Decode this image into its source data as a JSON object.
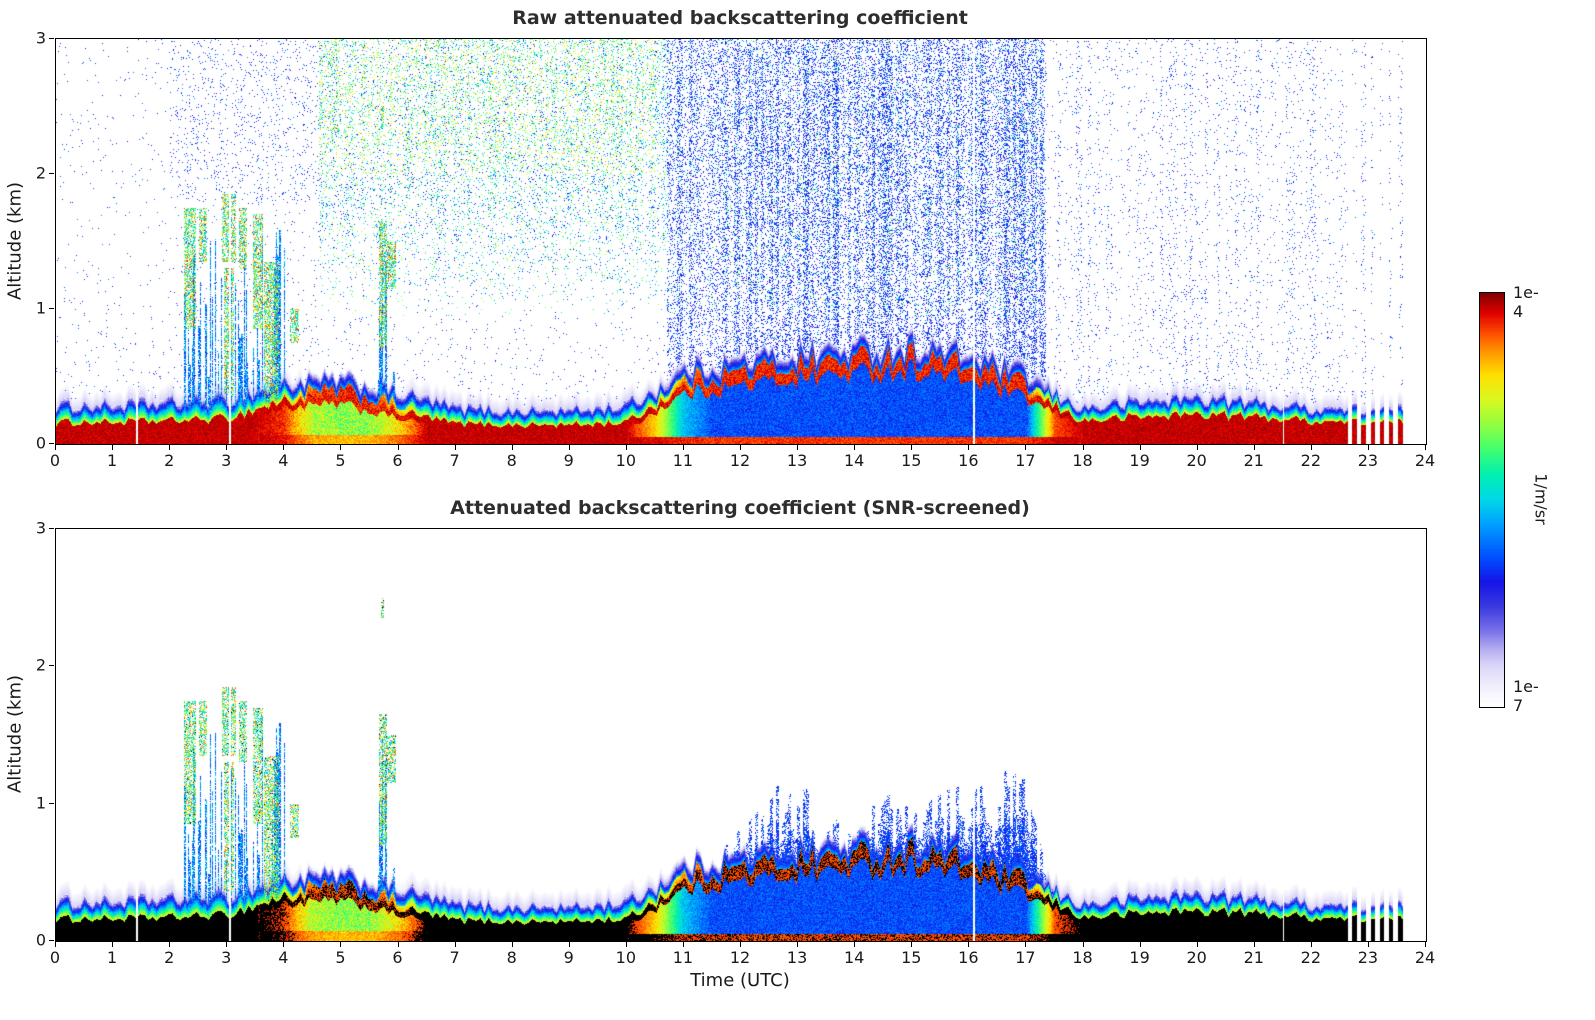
{
  "figure": {
    "background": "#ffffff",
    "colorbar": {
      "top_label": "1e-4",
      "bottom_label": "1e-7",
      "unit_label": "1/m/sr",
      "stops": [
        [
          0.0,
          "#ffffff"
        ],
        [
          0.05,
          "#f0eefc"
        ],
        [
          0.1,
          "#d8d4f8"
        ],
        [
          0.14,
          "#b0aaf0"
        ],
        [
          0.18,
          "#7a72e8"
        ],
        [
          0.24,
          "#3a3ae0"
        ],
        [
          0.3,
          "#1515e8"
        ],
        [
          0.36,
          "#0050ff"
        ],
        [
          0.44,
          "#00a0ff"
        ],
        [
          0.5,
          "#00d8e8"
        ],
        [
          0.56,
          "#00f0b0"
        ],
        [
          0.62,
          "#40ff70"
        ],
        [
          0.68,
          "#90ff40"
        ],
        [
          0.74,
          "#d8f820"
        ],
        [
          0.8,
          "#ffe000"
        ],
        [
          0.85,
          "#ffa000"
        ],
        [
          0.9,
          "#ff5000"
        ],
        [
          0.95,
          "#e00000"
        ],
        [
          1.0,
          "#7f0000"
        ]
      ]
    }
  },
  "chart_data": [
    {
      "type": "heatmap",
      "title": "Raw attenuated backscattering coefficient",
      "xlabel": "",
      "ylabel": "Altitude (km)",
      "xlim": [
        0,
        24
      ],
      "ylim": [
        0,
        3
      ],
      "xticks": [
        0,
        1,
        2,
        3,
        4,
        5,
        6,
        7,
        8,
        9,
        10,
        11,
        12,
        13,
        14,
        15,
        16,
        17,
        18,
        19,
        20,
        21,
        22,
        23,
        24
      ],
      "yticks": [
        0,
        1,
        2,
        3
      ],
      "scale": "log",
      "vmin": 1e-07,
      "vmax": 0.0001,
      "raw_noise": true,
      "features": {
        "aerosol_layer_top_km": [
          0.3,
          0.3,
          0.32,
          0.34,
          0.46,
          0.52,
          0.4,
          0.28,
          0.26,
          0.26,
          0.3,
          0.52,
          0.58,
          0.62,
          0.66,
          0.7,
          0.62,
          0.45,
          0.28,
          0.33,
          0.36,
          0.32,
          0.28,
          0.27,
          0.27
        ],
        "intense_core_top_km": [
          0.16,
          0.16,
          0.17,
          0.19,
          0.32,
          0.34,
          0.24,
          0.15,
          0.14,
          0.14,
          0.16,
          0.42,
          0.48,
          0.54,
          0.57,
          0.6,
          0.52,
          0.38,
          0.17,
          0.2,
          0.22,
          0.2,
          0.17,
          0.16,
          0.16
        ],
        "elevated_layer_mode": [
          0,
          0,
          0,
          0,
          0,
          0,
          0,
          0,
          0,
          0,
          0,
          0,
          0,
          0,
          0,
          0,
          0,
          0,
          0,
          0,
          0,
          0.25,
          0.8,
          1,
          1,
          1,
          1,
          1,
          1,
          1,
          1,
          1,
          1,
          1,
          1,
          0.1,
          0,
          0,
          0,
          0,
          0,
          0,
          0,
          0,
          0,
          0,
          0,
          0,
          0
        ],
        "plume_mode": [
          0,
          0,
          0,
          0,
          0,
          0,
          0,
          0,
          0.15,
          0.9,
          1,
          1,
          0.6,
          0,
          0,
          0,
          0,
          0,
          0,
          0,
          0,
          0,
          0,
          0,
          0,
          0,
          0,
          0,
          0,
          0,
          0,
          0,
          0,
          0,
          0,
          0,
          0,
          0,
          0,
          0,
          0,
          0,
          0,
          0,
          0,
          0,
          0,
          0,
          0
        ],
        "screened_blue_top_km": [
          0,
          0,
          0,
          0,
          0,
          0,
          0,
          0,
          0,
          0,
          0,
          0,
          0,
          0,
          0,
          0,
          0,
          0,
          0,
          0,
          0,
          0,
          0.3,
          0.55,
          0.7,
          0.95,
          1.0,
          0.7,
          0.75,
          0.9,
          0.95,
          1.0,
          1.0,
          1.0,
          1.0,
          0.25,
          0,
          0,
          0,
          0,
          0,
          0,
          0,
          0,
          0,
          0,
          0,
          0,
          0
        ],
        "cloud_events": [
          [
            2.25,
            2.45,
            0.85,
            1.75
          ],
          [
            2.5,
            2.65,
            1.35,
            1.75
          ],
          [
            2.9,
            3.15,
            1.35,
            1.85
          ],
          [
            2.95,
            3.12,
            0.35,
            1.3
          ],
          [
            3.2,
            3.35,
            1.3,
            1.75
          ],
          [
            3.45,
            3.62,
            0.85,
            1.7
          ],
          [
            3.65,
            3.9,
            0.25,
            1.35
          ],
          [
            4.1,
            4.25,
            0.75,
            1.0
          ],
          [
            5.65,
            5.8,
            0.7,
            1.65
          ],
          [
            5.8,
            5.95,
            1.15,
            1.5
          ],
          [
            5.7,
            5.74,
            2.35,
            2.5
          ]
        ],
        "precip_streak_window_utc": [
          2.0,
          4.0
        ],
        "secondary_streak_window_utc": [
          5.6,
          5.95
        ],
        "data_gaps_utc": [
          1.42,
          3.05,
          16.08,
          21.5
        ],
        "striped_segment_utc": [
          22.55,
          23.62
        ],
        "data_end_utc": 23.62
      }
    },
    {
      "type": "heatmap",
      "title": "Attenuated backscattering coefficient (SNR-screened)",
      "xlabel": "Time (UTC)",
      "ylabel": "Altitude (km)",
      "xlim": [
        0,
        24
      ],
      "ylim": [
        0,
        3
      ],
      "xticks": [
        0,
        1,
        2,
        3,
        4,
        5,
        6,
        7,
        8,
        9,
        10,
        11,
        12,
        13,
        14,
        15,
        16,
        17,
        18,
        19,
        20,
        21,
        22,
        23,
        24
      ],
      "yticks": [
        0,
        1,
        2,
        3
      ],
      "scale": "log",
      "vmin": 1e-07,
      "vmax": 0.0001,
      "raw_noise": false,
      "black_saturation_threshold": 0.93,
      "features": {
        "aerosol_layer_top_km": [
          0.3,
          0.3,
          0.32,
          0.34,
          0.46,
          0.52,
          0.4,
          0.28,
          0.26,
          0.26,
          0.3,
          0.52,
          0.58,
          0.62,
          0.66,
          0.7,
          0.62,
          0.45,
          0.28,
          0.33,
          0.36,
          0.32,
          0.28,
          0.27,
          0.27
        ],
        "intense_core_top_km": [
          0.16,
          0.16,
          0.17,
          0.19,
          0.32,
          0.34,
          0.24,
          0.15,
          0.14,
          0.14,
          0.16,
          0.42,
          0.48,
          0.54,
          0.57,
          0.6,
          0.52,
          0.38,
          0.17,
          0.2,
          0.22,
          0.2,
          0.17,
          0.16,
          0.16
        ],
        "elevated_layer_mode": [
          0,
          0,
          0,
          0,
          0,
          0,
          0,
          0,
          0,
          0,
          0,
          0,
          0,
          0,
          0,
          0,
          0,
          0,
          0,
          0,
          0,
          0.25,
          0.8,
          1,
          1,
          1,
          1,
          1,
          1,
          1,
          1,
          1,
          1,
          1,
          1,
          0.1,
          0,
          0,
          0,
          0,
          0,
          0,
          0,
          0,
          0,
          0,
          0,
          0,
          0
        ],
        "plume_mode": [
          0,
          0,
          0,
          0,
          0,
          0,
          0,
          0,
          0.15,
          0.9,
          1,
          1,
          0.6,
          0,
          0,
          0,
          0,
          0,
          0,
          0,
          0,
          0,
          0,
          0,
          0,
          0,
          0,
          0,
          0,
          0,
          0,
          0,
          0,
          0,
          0,
          0,
          0,
          0,
          0,
          0,
          0,
          0,
          0,
          0,
          0,
          0,
          0,
          0,
          0
        ],
        "screened_blue_top_km": [
          0,
          0,
          0,
          0,
          0,
          0,
          0,
          0,
          0,
          0,
          0,
          0,
          0,
          0,
          0,
          0,
          0,
          0,
          0,
          0,
          0,
          0,
          0.3,
          0.55,
          0.7,
          0.95,
          1.0,
          0.7,
          0.75,
          0.9,
          0.95,
          1.0,
          1.0,
          1.0,
          1.0,
          0.25,
          0,
          0,
          0,
          0,
          0,
          0,
          0,
          0,
          0,
          0,
          0,
          0,
          0
        ],
        "cloud_events": [
          [
            2.25,
            2.45,
            0.85,
            1.75
          ],
          [
            2.5,
            2.65,
            1.35,
            1.75
          ],
          [
            2.9,
            3.15,
            1.35,
            1.85
          ],
          [
            2.95,
            3.12,
            0.35,
            1.3
          ],
          [
            3.2,
            3.35,
            1.3,
            1.75
          ],
          [
            3.45,
            3.62,
            0.85,
            1.7
          ],
          [
            3.65,
            3.9,
            0.25,
            1.35
          ],
          [
            4.1,
            4.25,
            0.75,
            1.0
          ],
          [
            5.65,
            5.8,
            0.7,
            1.65
          ],
          [
            5.8,
            5.95,
            1.15,
            1.5
          ],
          [
            5.7,
            5.74,
            2.35,
            2.5
          ]
        ],
        "precip_streak_window_utc": [
          2.0,
          4.0
        ],
        "secondary_streak_window_utc": [
          5.6,
          5.95
        ],
        "data_gaps_utc": [
          1.42,
          3.05,
          16.08,
          21.5
        ],
        "striped_segment_utc": [
          22.55,
          23.62
        ],
        "data_end_utc": 23.62
      }
    }
  ]
}
